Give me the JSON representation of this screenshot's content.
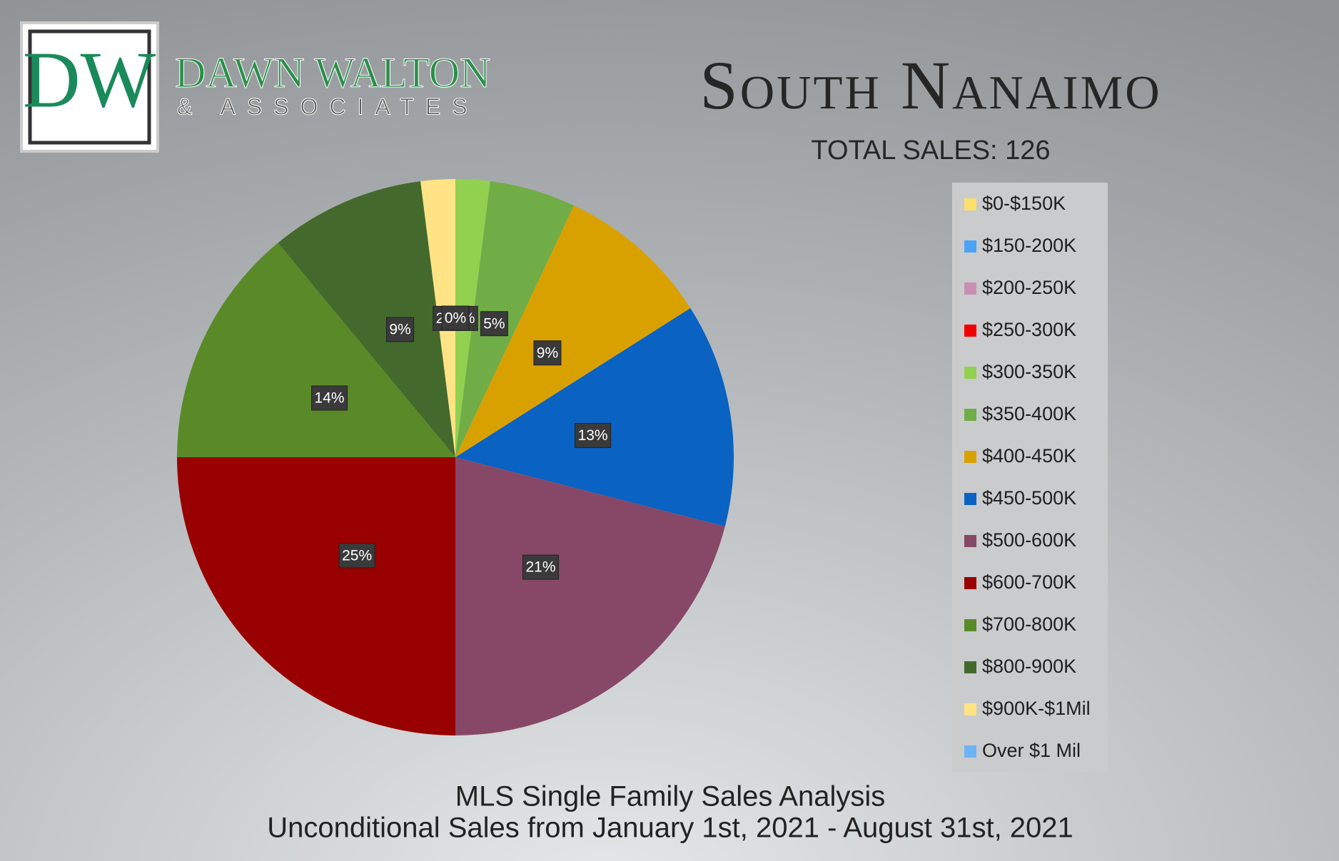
{
  "logo": {
    "initials": "DW",
    "name": "DAWN WALTON",
    "tagline": "& ASSOCIATES"
  },
  "chart_data": {
    "type": "pie",
    "title": "South Nanaimo",
    "subtitle": "TOTAL SALES: 126",
    "footer": [
      "MLS Single Family Sales Analysis",
      "Unconditional Sales from January 1st, 2021 - August 31st, 2021"
    ],
    "categories": [
      "$0-$150K",
      "$150-200K",
      "$200-250K",
      "$250-300K",
      "$300-350K",
      "$350-400K",
      "$400-450K",
      "$450-500K",
      "$500-600K",
      "$600-700K",
      "$700-800K",
      "$800-900K",
      "$900K-$1Mil",
      "Over $1 Mil"
    ],
    "values": [
      0,
      0,
      0,
      0,
      2,
      5,
      9,
      13,
      21,
      25,
      14,
      9,
      2,
      0
    ],
    "value_labels": [
      "0%",
      "0%",
      "0%",
      "0%",
      "2%",
      "5%",
      "9%",
      "13%",
      "21%",
      "25%",
      "14%",
      "9%",
      "2%",
      "0%"
    ],
    "colors": [
      "#ffdf6b",
      "#4aa3f5",
      "#c98fb3",
      "#f00000",
      "#92d050",
      "#70ad47",
      "#d9a100",
      "#0a62c2",
      "#874868",
      "#990000",
      "#5a8a28",
      "#436a2c",
      "#ffe384",
      "#6cb4f7"
    ],
    "legend": "right"
  }
}
